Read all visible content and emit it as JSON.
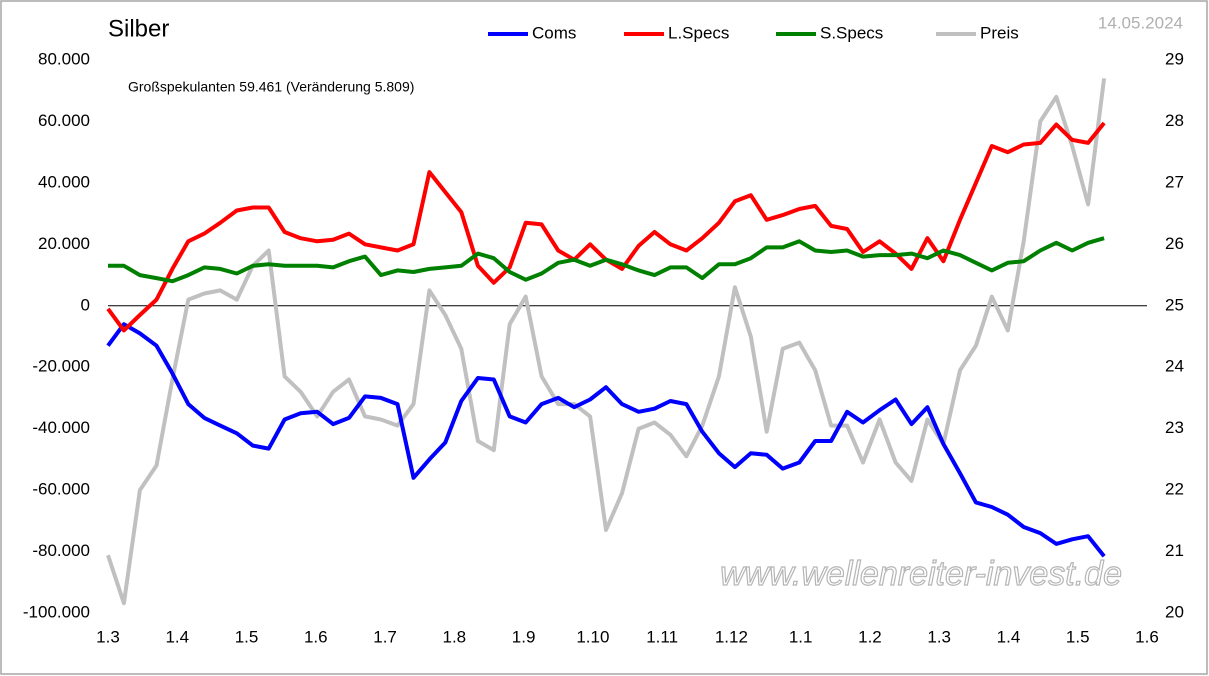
{
  "chart_data": {
    "type": "line",
    "title": "Silber",
    "date": "14.05.2024",
    "annotation": "Großspekulanten 59.461 (Veränderung 5.809)",
    "watermark": "www.wellenreiter-invest.de",
    "legend": "top",
    "grid": false,
    "x": [
      0,
      0.23,
      0.46,
      0.7,
      0.93,
      1.16,
      1.39,
      1.62,
      1.86,
      2.09,
      2.32,
      2.55,
      2.78,
      3.02,
      3.25,
      3.48,
      3.71,
      3.94,
      4.18,
      4.41,
      4.64,
      4.87,
      5.1,
      5.34,
      5.57,
      5.8,
      6.03,
      6.26,
      6.5,
      6.73,
      6.96,
      7.19,
      7.42,
      7.66,
      7.89,
      8.12,
      8.35,
      8.58,
      8.82,
      9.05,
      9.28,
      9.51,
      9.74,
      9.98,
      10.21,
      10.44,
      10.67,
      10.9,
      11.14,
      11.37,
      11.6,
      11.83,
      12.06,
      12.3,
      12.53,
      12.76,
      12.99,
      13.22,
      13.46,
      13.69,
      13.92,
      14.15,
      14.38
    ],
    "xlim": [
      0,
      15
    ],
    "xticks": [
      {
        "value": 0,
        "label": "1.3"
      },
      {
        "value": 1,
        "label": "1.4"
      },
      {
        "value": 2,
        "label": "1.5"
      },
      {
        "value": 3,
        "label": "1.6"
      },
      {
        "value": 4,
        "label": "1.7"
      },
      {
        "value": 5,
        "label": "1.8"
      },
      {
        "value": 6,
        "label": "1.9"
      },
      {
        "value": 7,
        "label": "1.10"
      },
      {
        "value": 8,
        "label": "1.11"
      },
      {
        "value": 9,
        "label": "1.12"
      },
      {
        "value": 10,
        "label": "1.1"
      },
      {
        "value": 11,
        "label": "1.2"
      },
      {
        "value": 12,
        "label": "1.3"
      },
      {
        "value": 13,
        "label": "1.4"
      },
      {
        "value": 14,
        "label": "1.5"
      },
      {
        "value": 15,
        "label": "1.6"
      }
    ],
    "ylim": [
      -100000,
      80000
    ],
    "yticks": [
      {
        "value": -100000,
        "label": "-100.000"
      },
      {
        "value": -80000,
        "label": "-80.000"
      },
      {
        "value": -60000,
        "label": "-60.000"
      },
      {
        "value": -40000,
        "label": "-40.000"
      },
      {
        "value": -20000,
        "label": "-20.000"
      },
      0,
      {
        "value": 20000,
        "label": "20.000"
      },
      {
        "value": 40000,
        "label": "40.000"
      },
      {
        "value": 60000,
        "label": "60.000"
      },
      {
        "value": 80000,
        "label": "80.000"
      }
    ],
    "y2lim": [
      20,
      29
    ],
    "y2ticks": [
      20,
      21,
      22,
      23,
      24,
      25,
      26,
      27,
      28,
      29
    ],
    "series": [
      {
        "name": "Coms",
        "color": "#0000ff",
        "values": [
          -13000,
          -6000,
          -9000,
          -13000,
          -22000,
          -32000,
          -36500,
          -39000,
          -41500,
          -45500,
          -46500,
          -37000,
          -35000,
          -34500,
          -38500,
          -36500,
          -29500,
          -30000,
          -32000,
          -56000,
          -50000,
          -44500,
          -31000,
          -23500,
          -24000,
          -36000,
          -38000,
          -32000,
          -30000,
          -33000,
          -30500,
          -26500,
          -32000,
          -34500,
          -33500,
          -31000,
          -32000,
          -41000,
          -48000,
          -52500,
          -48000,
          -48500,
          -53000,
          -51000,
          -44000,
          -44000,
          -34500,
          -38000,
          -34000,
          -30500,
          -38500,
          -33000,
          -45000,
          -54500,
          -64000,
          -65500,
          -68000,
          -72000,
          -74000,
          -77500,
          -76000,
          -75000,
          -81500
        ]
      },
      {
        "name": "L.Specs",
        "color": "#ff0000",
        "values": [
          -1000,
          -8000,
          -3000,
          2000,
          12000,
          21000,
          23500,
          27000,
          31000,
          32000,
          32000,
          24000,
          22000,
          21000,
          21500,
          23500,
          20000,
          19000,
          18000,
          20000,
          43500,
          37000,
          30500,
          13000,
          7500,
          12500,
          27000,
          26500,
          18000,
          15000,
          20000,
          15000,
          12000,
          19500,
          24000,
          20000,
          18000,
          22000,
          27000,
          34000,
          36000,
          28000,
          29500,
          31500,
          32500,
          26000,
          25000,
          17500,
          21000,
          17000,
          12000,
          22000,
          14500,
          28000,
          40000,
          52000,
          50000,
          52500,
          53000,
          59000,
          54000,
          53000,
          59500
        ]
      },
      {
        "name": "S.Specs",
        "color": "#008000",
        "values": [
          13000,
          13000,
          10000,
          9000,
          8000,
          10000,
          12500,
          12000,
          10500,
          13000,
          13500,
          13000,
          13000,
          13000,
          12500,
          14500,
          16000,
          10000,
          11500,
          11000,
          12000,
          12500,
          13000,
          17000,
          15500,
          11000,
          8500,
          10500,
          14000,
          15000,
          13000,
          15000,
          13500,
          11500,
          10000,
          12500,
          12500,
          9000,
          13500,
          13500,
          15500,
          19000,
          19000,
          21000,
          18000,
          17500,
          18000,
          16000,
          16500,
          16500,
          17000,
          15500,
          18000,
          16500,
          14000,
          11500,
          14000,
          14500,
          18000,
          20500,
          18000,
          20500,
          22000
        ]
      },
      {
        "name": "Preis",
        "color": "#c0c0c0",
        "axis": "y2",
        "values": [
          20.94,
          20.16,
          22.0,
          22.4,
          23.8,
          25.1,
          25.2,
          25.25,
          25.1,
          25.65,
          25.9,
          23.85,
          23.6,
          23.2,
          23.6,
          23.8,
          23.2,
          23.15,
          23.05,
          23.4,
          25.25,
          24.85,
          24.3,
          22.8,
          22.65,
          24.7,
          25.15,
          23.85,
          23.4,
          23.4,
          23.2,
          21.35,
          21.95,
          23.0,
          23.1,
          22.9,
          22.55,
          23.05,
          23.85,
          25.3,
          24.5,
          22.95,
          24.3,
          24.4,
          23.95,
          23.05,
          23.05,
          22.45,
          23.15,
          22.45,
          22.15,
          23.15,
          22.75,
          23.95,
          24.35,
          25.15,
          24.6,
          26.05,
          28.0,
          28.4,
          27.6,
          26.65,
          28.7
        ]
      }
    ]
  }
}
